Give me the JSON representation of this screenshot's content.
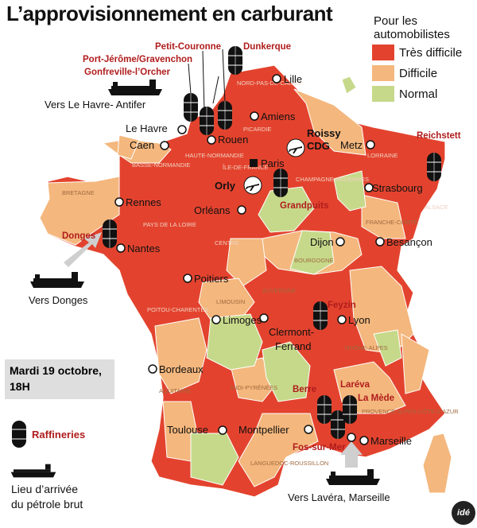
{
  "title": "L’approvisionnement en carburant",
  "legend": {
    "title_line1": "Pour les",
    "title_line2": "automobilistes",
    "items": [
      {
        "label": "Très difficile",
        "color": "#e3432e"
      },
      {
        "label": "Difficile",
        "color": "#f4b77d"
      },
      {
        "label": "Normal",
        "color": "#c6d98a"
      }
    ]
  },
  "date": {
    "line1": "Mardi 19 octobre,",
    "line2": "18H"
  },
  "refineries_legend": "Raffineries",
  "ship_legend": {
    "line1": "Lieu d’arrivée",
    "line2": "du pétrole brut"
  },
  "logo": "idé",
  "cities": {
    "lille": "Lille",
    "amiens": "Amiens",
    "le_havre": "Le Havre",
    "rouen": "Rouen",
    "caen": "Caen",
    "paris": "Paris",
    "roissy1": "Roissy",
    "roissy2": "CDG",
    "orly": "Orly",
    "metz": "Metz",
    "strasbourg": "Strasbourg",
    "rennes": "Rennes",
    "orleans": "Orléans",
    "nantes": "Nantes",
    "dijon": "Dijon",
    "besancon": "Besançon",
    "poitiers": "Poitiers",
    "limoges": "Limoges",
    "lyon": "Lyon",
    "clermont1": "Clermont-",
    "clermont2": "Ferrand",
    "bordeaux": "Bordeaux",
    "toulouse": "Toulouse",
    "montpellier": "Montpellier",
    "marseille": "Marseille"
  },
  "refineries": {
    "petit_couronne": "Petit-Couronne",
    "dunkerque": "Dunkerque",
    "port_jerome": "Port-Jérôme/Gravenchon",
    "gonfreville": "Gonfreville-l’Orcher",
    "reichstett": "Reichstett",
    "grandpuits": "Grandpuits",
    "donges": "Donges",
    "feyzin": "Feyzin",
    "berre": "Berre",
    "lavera": "Laréva",
    "la_mede": "La Mède",
    "fos": "Fos-sur-Mer"
  },
  "arrivals": {
    "le_havre": "Vers Le Havre- Antifer",
    "donges": "Vers Donges",
    "marseille": "Vers Lavéra, Marseille"
  },
  "regions": {
    "nord": "NORD-PAS-DE-CALAIS",
    "picardie": "PICARDIE",
    "haute_norm": "HAUTE-NORMANDIE",
    "basse_norm": "BASSE-NORMANDIE",
    "idf": "ÎLE-DE-FRANCE",
    "champagne": "CHAMPAGNE-ARDENNES",
    "lorraine": "LORRAINE",
    "alsace": "ALSACE",
    "bretagne": "BRETAGNE",
    "pays_loire": "PAYS DE LA LOIRE",
    "centre": "CENTRE",
    "bourgogne": "BOURGOGNE",
    "franche_comte": "FRANCHE-COMTÉ",
    "poitou": "POITOU-CHARENTES",
    "limousin": "LIMOUSIN",
    "auvergne": "AUVERGNE",
    "rhone_alpes": "RHÔNE-ALPES",
    "aquitaine": "AQUITAINE",
    "midi_pyr": "MIDI-PYRÉNÉES",
    "languedoc": "LANGUEDOC-ROUSSILLON",
    "paca": "PROVENCE-ALPES-CÔTE D’AZUR"
  }
}
